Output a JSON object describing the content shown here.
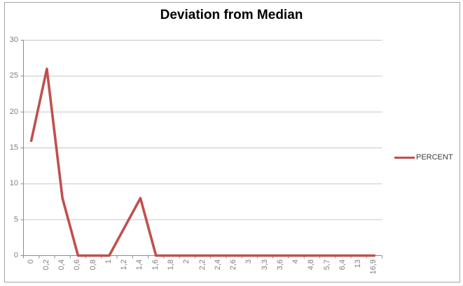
{
  "window": {
    "background": "#ffffff",
    "frame_border_color": "#a6a6a6"
  },
  "chart_data": {
    "type": "line",
    "title": "Deviation from Median",
    "categories": [
      "0",
      "0,2",
      "0,4",
      "0,6",
      "0,8",
      "1",
      "1,2",
      "1,4",
      "1,6",
      "1,8",
      "2",
      "2,2",
      "2,4",
      "2,6",
      "3",
      "3,3",
      "3,6",
      "4",
      "4,8",
      "5,7",
      "6,4",
      "13",
      "16,9"
    ],
    "series": [
      {
        "name": "PERCENT",
        "color": "#C0504D",
        "values": [
          16,
          26,
          8,
          0,
          0,
          0,
          4,
          8,
          0,
          0,
          0,
          0,
          0,
          0,
          0,
          0,
          0,
          0,
          0,
          0,
          0,
          0,
          0
        ]
      }
    ],
    "xlabel": "",
    "ylabel": "",
    "ylim": [
      0,
      30
    ],
    "yticks": [
      0,
      5,
      10,
      15,
      20,
      25,
      30
    ],
    "grid": "horizontal-major",
    "legend_position": "middle-right",
    "x_label_rotation_degrees": 90,
    "colors": {
      "axis": "#8c8c8c",
      "gridline": "#c6c6c6",
      "tick": "#8c8c8c",
      "tick_label": "#7f7f7f",
      "legend_text": "#3f3f3f",
      "title_text": "#000000"
    }
  }
}
